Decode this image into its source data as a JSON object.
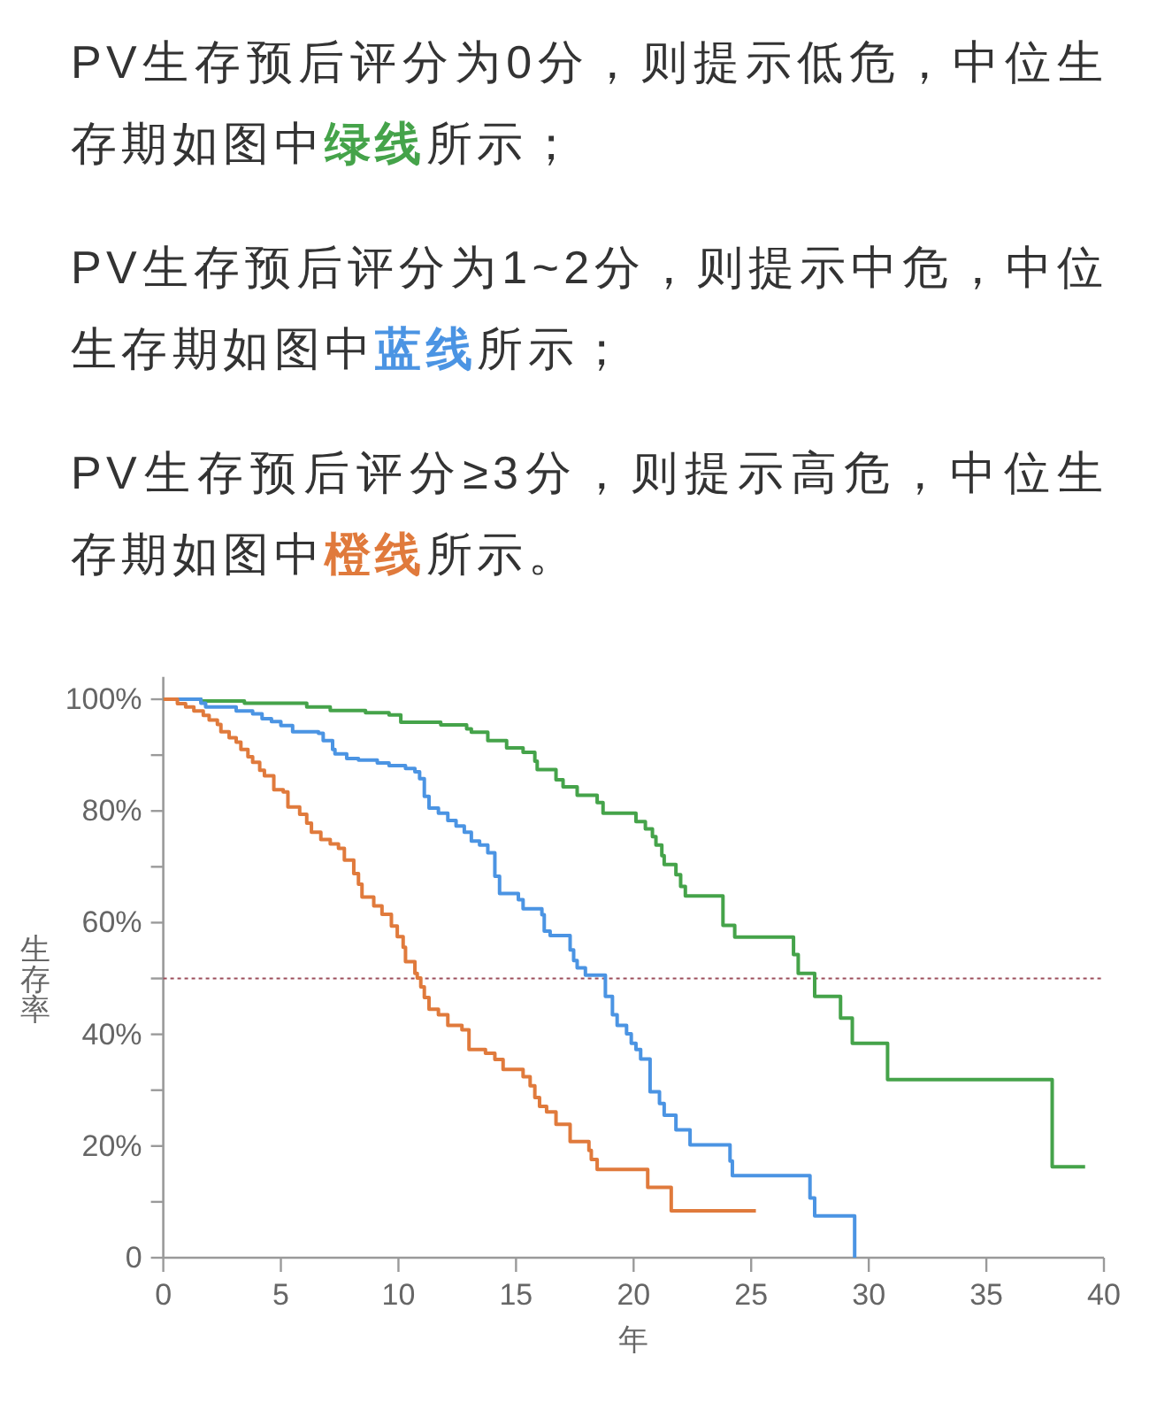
{
  "chart_data": {
    "type": "step",
    "annotations": [
      "PV生存预后评分为0分，则提示低危，中位生存期如图中",
      "所示；",
      "PV生存预后评分为1~2分，则提示中危，中位生存期如图中",
      "所示；",
      "PV生存预后评分≥3分，则提示高危，中位生存期如图中",
      "所示。"
    ],
    "xlabel": "年",
    "ylabel": "生存率",
    "xlim": [
      0,
      40
    ],
    "xticks": [
      0,
      5,
      10,
      15,
      20,
      25,
      30,
      35,
      40
    ],
    "ylim": [
      0,
      104
    ],
    "yticks": [
      0,
      {
        "value": 10,
        "label": null
      },
      {
        "value": 20,
        "label": "20%"
      },
      {
        "value": 30,
        "label": null
      },
      {
        "value": 40,
        "label": "40%"
      },
      {
        "value": 50,
        "label": null
      },
      {
        "value": 60,
        "label": "60%"
      },
      {
        "value": 70,
        "label": null
      },
      {
        "value": 80,
        "label": "80%"
      },
      {
        "value": 90,
        "label": null
      },
      {
        "value": 100,
        "label": "100%"
      }
    ],
    "ref_lines": [
      {
        "axis": "y",
        "value": 50,
        "color": "#9b4d5a",
        "line_style": "dotted"
      }
    ],
    "series": [
      {
        "name": "绿线",
        "color": "#45a34a",
        "x": [
          0,
          1.6,
          3.45,
          6.1,
          7.1,
          8.6,
          9.6,
          10.1,
          11.8,
          12.9,
          13.1,
          13.8,
          14.6,
          15.3,
          15.8,
          15.9,
          16.7,
          17.0,
          17.6,
          18.45,
          18.7,
          20.1,
          20.5,
          20.8,
          20.95,
          21.2,
          21.3,
          21.8,
          22.0,
          22.2,
          23.8,
          24.3,
          26.8,
          27.0,
          27.7,
          28.8,
          29.3,
          30.8,
          37.8,
          39.2
        ],
        "values": [
          100,
          99.7,
          99.3,
          98.6,
          98.0,
          97.6,
          97.2,
          95.9,
          95.4,
          94.7,
          94.1,
          92.6,
          91.3,
          90.5,
          88.9,
          87.4,
          85.6,
          84.3,
          82.8,
          81.5,
          79.6,
          78.1,
          76.8,
          75.4,
          73.9,
          72.0,
          70.4,
          68.6,
          66.5,
          64.8,
          59.5,
          57.4,
          54.3,
          50.9,
          46.8,
          42.9,
          38.4,
          31.9,
          16.3,
          16.3
        ]
      },
      {
        "name": "蓝线",
        "color": "#4b94e3",
        "x": [
          0,
          1.6,
          1.8,
          3.1,
          3.8,
          4.2,
          4.6,
          5.0,
          5.5,
          6.6,
          6.8,
          7.2,
          7.3,
          7.8,
          8.3,
          9.1,
          9.6,
          10.3,
          10.7,
          10.9,
          11.1,
          11.3,
          11.7,
          12.1,
          12.45,
          12.8,
          13.1,
          13.45,
          13.8,
          14.1,
          14.3,
          15.1,
          15.3,
          16.1,
          16.2,
          16.45,
          17.3,
          17.45,
          17.6,
          17.95,
          18.8,
          19.1,
          19.3,
          19.7,
          19.9,
          20.1,
          20.3,
          20.7,
          21.1,
          21.3,
          21.8,
          22.4,
          24.1,
          24.2,
          27.5,
          27.7,
          29.4
        ],
        "values": [
          100,
          99.3,
          98.6,
          97.9,
          97.4,
          96.5,
          96.0,
          95.3,
          94.2,
          93.9,
          92.6,
          91.0,
          90.2,
          89.4,
          89.1,
          88.6,
          88.1,
          87.6,
          87.0,
          85.8,
          82.6,
          80.5,
          79.6,
          78.3,
          77.3,
          76.2,
          74.6,
          73.9,
          72.5,
          68.3,
          65.2,
          64.1,
          62.5,
          61.4,
          58.5,
          57.7,
          55.1,
          53.2,
          51.9,
          50.6,
          46.8,
          43.5,
          41.6,
          40.1,
          38.4,
          37.3,
          35.6,
          29.7,
          27.6,
          25.5,
          22.9,
          20.2,
          17.3,
          14.7,
          10.7,
          7.5,
          0
        ]
      },
      {
        "name": "橙线",
        "color": "#e07a3c",
        "x": [
          0,
          0.6,
          0.95,
          1.3,
          1.7,
          1.95,
          2.3,
          2.45,
          2.8,
          3.1,
          3.3,
          3.6,
          3.8,
          4.1,
          4.3,
          4.7,
          5.1,
          5.3,
          5.8,
          6.1,
          6.3,
          6.7,
          7.1,
          7.45,
          7.7,
          8.1,
          8.3,
          8.45,
          8.95,
          9.3,
          9.7,
          9.95,
          10.2,
          10.3,
          10.7,
          10.8,
          10.95,
          11.1,
          11.3,
          11.7,
          12.1,
          12.7,
          13.0,
          13.7,
          14.1,
          14.45,
          15.3,
          15.6,
          15.8,
          16.0,
          16.3,
          16.7,
          17.3,
          18.1,
          18.2,
          18.45,
          20.6,
          21.6,
          25.2
        ],
        "values": [
          100,
          99.2,
          98.6,
          97.9,
          97.1,
          96.3,
          95.5,
          94.2,
          93.1,
          92.3,
          91.0,
          89.7,
          88.7,
          87.3,
          86.3,
          83.8,
          83.4,
          80.7,
          79.4,
          77.8,
          76.2,
          74.9,
          74.1,
          73.3,
          71.2,
          68.8,
          66.9,
          64.6,
          63.0,
          61.5,
          59.4,
          57.5,
          55.6,
          53.0,
          50.9,
          50.1,
          48.5,
          46.6,
          44.5,
          43.5,
          41.6,
          40.8,
          37.3,
          36.6,
          35.5,
          33.7,
          32.4,
          30.8,
          28.7,
          27.1,
          26.1,
          23.9,
          20.8,
          19.2,
          17.6,
          15.8,
          12.6,
          8.4,
          8.4
        ]
      }
    ]
  }
}
